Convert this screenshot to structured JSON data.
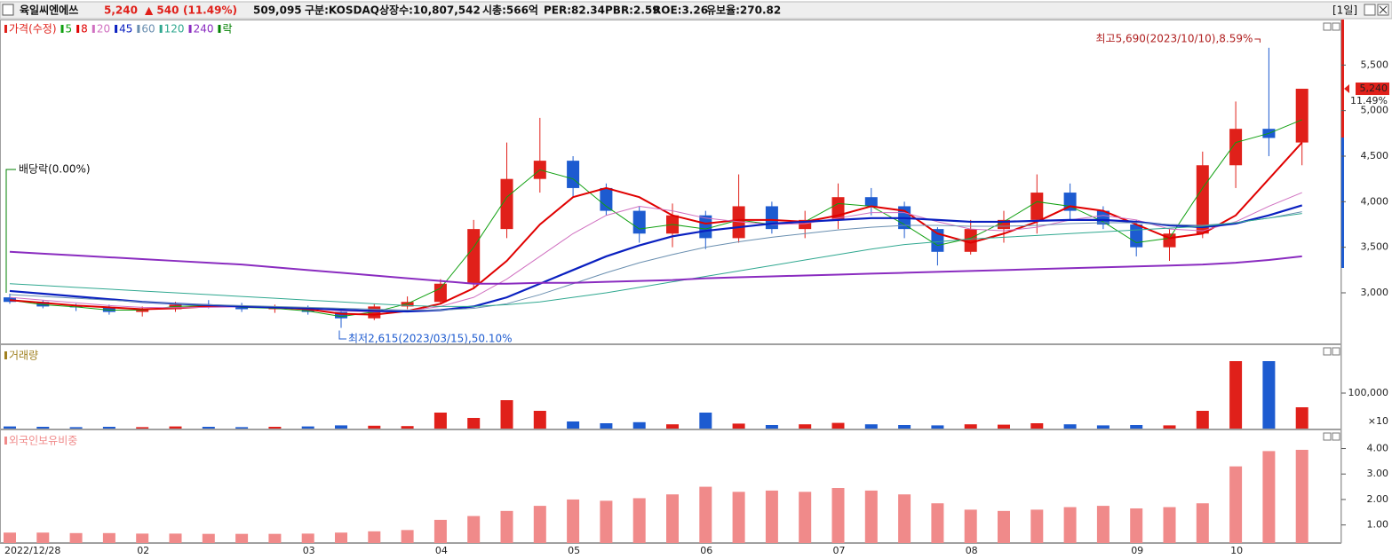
{
  "header": {
    "name": "육일씨엔에쓰",
    "price": "5,240",
    "change": "▲ 540",
    "change_rate": "(11.49%)",
    "volume": "509,095",
    "market": "구분:KOSDAQ",
    "shares": "상장수:10,807,542",
    "cap": "시총:566억",
    "per": "PER:82.34",
    "pbr": "PBR:2.59",
    "roe": "ROE:3.26",
    "reserve": "유보율:270.82",
    "period": "[1일]"
  },
  "chart_data": [
    {
      "type": "candlestick",
      "price_name": "가격(수정)",
      "up_color": "#e0201a",
      "down_color": "#1d5bd0",
      "categories": [
        "2022/12/28",
        null,
        null,
        null,
        "02",
        null,
        null,
        null,
        null,
        "03",
        null,
        null,
        null,
        "04",
        null,
        null,
        null,
        "05",
        null,
        null,
        null,
        "06",
        null,
        null,
        null,
        "07",
        null,
        null,
        null,
        "08",
        null,
        null,
        null,
        null,
        "09",
        null,
        null,
        "10",
        null,
        null
      ],
      "open": [
        2950,
        2900,
        2850,
        2840,
        2790,
        2820,
        2870,
        2860,
        2820,
        2830,
        2790,
        2720,
        2850,
        2900,
        3100,
        3700,
        4250,
        4450,
        4150,
        3900,
        3650,
        3850,
        3600,
        3950,
        3700,
        3800,
        4050,
        3950,
        3700,
        3450,
        3700,
        3800,
        4100,
        3900,
        3750,
        3500,
        3650,
        4400,
        4800,
        4650
      ],
      "high": [
        2990,
        2920,
        2880,
        2870,
        2850,
        2900,
        2920,
        2890,
        2870,
        2860,
        2810,
        2880,
        2960,
        3150,
        3800,
        4650,
        4920,
        4500,
        4200,
        3950,
        3980,
        3900,
        4300,
        4000,
        3900,
        4200,
        4150,
        4000,
        3720,
        3800,
        3900,
        4300,
        4200,
        3950,
        3800,
        3700,
        4550,
        5100,
        5690,
        5240
      ],
      "low": [
        2880,
        2830,
        2800,
        2760,
        2740,
        2790,
        2830,
        2790,
        2780,
        2760,
        2615,
        2700,
        2820,
        2880,
        3050,
        3600,
        4100,
        4050,
        3850,
        3550,
        3500,
        3480,
        3550,
        3650,
        3600,
        3700,
        3850,
        3600,
        3300,
        3420,
        3550,
        3650,
        3800,
        3700,
        3400,
        3350,
        3600,
        4150,
        4500,
        4400
      ],
      "close": [
        2900,
        2850,
        2840,
        2790,
        2820,
        2870,
        2860,
        2820,
        2830,
        2790,
        2720,
        2850,
        2900,
        3100,
        3700,
        4250,
        4450,
        4150,
        3900,
        3650,
        3850,
        3600,
        3950,
        3700,
        3800,
        4050,
        3950,
        3700,
        3450,
        3700,
        3800,
        4100,
        3900,
        3750,
        3500,
        3650,
        4400,
        4800,
        4700,
        5240
      ],
      "last_label": "5,240",
      "last_rate_label": "11.49%",
      "series": [
        {
          "name": "5",
          "color": "#10a010",
          "width": 1,
          "values": [
            2920,
            2870,
            2845,
            2810,
            2810,
            2850,
            2860,
            2840,
            2830,
            2800,
            2740,
            2790,
            2880,
            3050,
            3500,
            4050,
            4350,
            4250,
            3950,
            3700,
            3750,
            3700,
            3800,
            3750,
            3780,
            3980,
            3950,
            3750,
            3520,
            3600,
            3780,
            4000,
            3950,
            3780,
            3550,
            3600,
            4150,
            4650,
            4750,
            4900
          ]
        },
        {
          "name": "8",
          "color": "#e00000",
          "width": 2,
          "values": [
            2920,
            2890,
            2860,
            2840,
            2820,
            2830,
            2850,
            2850,
            2840,
            2820,
            2770,
            2760,
            2800,
            2880,
            3050,
            3350,
            3750,
            4050,
            4150,
            4050,
            3850,
            3760,
            3800,
            3800,
            3780,
            3850,
            3950,
            3900,
            3650,
            3550,
            3650,
            3780,
            3950,
            3900,
            3750,
            3600,
            3650,
            3850,
            4250,
            4650
          ]
        },
        {
          "name": "20",
          "color": "#d070c0",
          "width": 1,
          "values": [
            2950,
            2920,
            2890,
            2860,
            2840,
            2835,
            2840,
            2845,
            2840,
            2830,
            2800,
            2790,
            2800,
            2850,
            2950,
            3150,
            3400,
            3650,
            3850,
            3950,
            3900,
            3820,
            3780,
            3750,
            3760,
            3820,
            3880,
            3880,
            3780,
            3700,
            3680,
            3720,
            3800,
            3850,
            3800,
            3700,
            3680,
            3780,
            3950,
            4100
          ]
        },
        {
          "name": "45",
          "color": "#0a20c0",
          "width": 2.2,
          "values": [
            3020,
            2990,
            2960,
            2930,
            2900,
            2880,
            2865,
            2850,
            2840,
            2830,
            2815,
            2800,
            2795,
            2810,
            2850,
            2950,
            3100,
            3250,
            3400,
            3520,
            3620,
            3680,
            3720,
            3760,
            3780,
            3800,
            3820,
            3820,
            3800,
            3780,
            3780,
            3790,
            3800,
            3800,
            3780,
            3740,
            3720,
            3760,
            3850,
            3960
          ]
        },
        {
          "name": "60",
          "color": "#6a8fb0",
          "width": 1,
          "values": [
            2980,
            2960,
            2940,
            2920,
            2900,
            2880,
            2870,
            2860,
            2850,
            2840,
            2830,
            2820,
            2810,
            2810,
            2830,
            2880,
            2980,
            3100,
            3220,
            3330,
            3420,
            3500,
            3560,
            3610,
            3650,
            3690,
            3720,
            3740,
            3740,
            3730,
            3730,
            3740,
            3760,
            3770,
            3770,
            3750,
            3740,
            3770,
            3820,
            3890
          ]
        },
        {
          "name": "120",
          "color": "#30a890",
          "width": 1,
          "values": [
            3100,
            3080,
            3060,
            3040,
            3020,
            3000,
            2980,
            2960,
            2940,
            2920,
            2900,
            2880,
            2860,
            2850,
            2850,
            2870,
            2900,
            2950,
            3000,
            3060,
            3120,
            3180,
            3240,
            3300,
            3360,
            3420,
            3480,
            3530,
            3560,
            3590,
            3610,
            3630,
            3650,
            3670,
            3690,
            3710,
            3730,
            3770,
            3820,
            3870
          ]
        },
        {
          "name": "240",
          "color": "#8a2cc0",
          "width": 2,
          "values": [
            3450,
            3430,
            3410,
            3390,
            3370,
            3350,
            3330,
            3310,
            3280,
            3250,
            3220,
            3190,
            3160,
            3130,
            3100,
            3100,
            3110,
            3110,
            3120,
            3130,
            3140,
            3160,
            3170,
            3180,
            3190,
            3200,
            3210,
            3220,
            3230,
            3240,
            3250,
            3260,
            3270,
            3280,
            3290,
            3300,
            3310,
            3330,
            3360,
            3400
          ]
        }
      ],
      "legend_extra": {
        "name": "락",
        "color": "#008000"
      },
      "ylim": [
        2435,
        6000
      ],
      "yticks": [
        {
          "value": 3000,
          "label": "3,000"
        },
        {
          "value": 3500,
          "label": "3,500"
        },
        {
          "value": 4000,
          "label": "4,000"
        },
        {
          "value": 4500,
          "label": "4,500"
        },
        {
          "value": 5000,
          "label": "5,000"
        },
        {
          "value": 5500,
          "label": "5,500"
        }
      ],
      "annotations": {
        "high": "최고5,690(2023/10/10),8.59%",
        "low": "최저2,615(2023/03/15),50.10%",
        "dividend": "배당락(0.00%)"
      }
    },
    {
      "type": "bar",
      "title": "거래량",
      "color": "#a08020",
      "unit_label": "×10",
      "values": [
        6000,
        5000,
        4000,
        5000,
        4000,
        6000,
        5000,
        4000,
        5000,
        6000,
        9000,
        8000,
        7000,
        45000,
        30000,
        80000,
        50000,
        20000,
        15000,
        18000,
        12000,
        45000,
        14000,
        10000,
        12000,
        16000,
        12000,
        10000,
        9000,
        12000,
        11000,
        15000,
        12000,
        9000,
        10000,
        9000,
        50000,
        190000,
        190000,
        60000
      ],
      "ylim": [
        0,
        237500
      ],
      "yticks": [
        {
          "value": 100000,
          "label": "100,000"
        }
      ]
    },
    {
      "type": "bar",
      "title": "외국인보유비중",
      "color": "#f08a8a",
      "values": [
        0.7,
        0.7,
        0.68,
        0.68,
        0.66,
        0.66,
        0.65,
        0.65,
        0.65,
        0.66,
        0.7,
        0.75,
        0.8,
        1.2,
        1.35,
        1.55,
        1.75,
        2.0,
        1.95,
        2.05,
        2.2,
        2.5,
        2.3,
        2.35,
        2.3,
        2.45,
        2.35,
        2.2,
        1.85,
        1.6,
        1.55,
        1.6,
        1.7,
        1.75,
        1.65,
        1.7,
        1.85,
        3.3,
        3.9,
        3.95
      ],
      "ylim": [
        0.29,
        4.75
      ],
      "yticks": [
        {
          "value": 1,
          "label": "1.00"
        },
        {
          "value": 2,
          "label": "2.00"
        },
        {
          "value": 3,
          "label": "3.00"
        },
        {
          "value": 4,
          "label": "4.00"
        }
      ]
    }
  ]
}
